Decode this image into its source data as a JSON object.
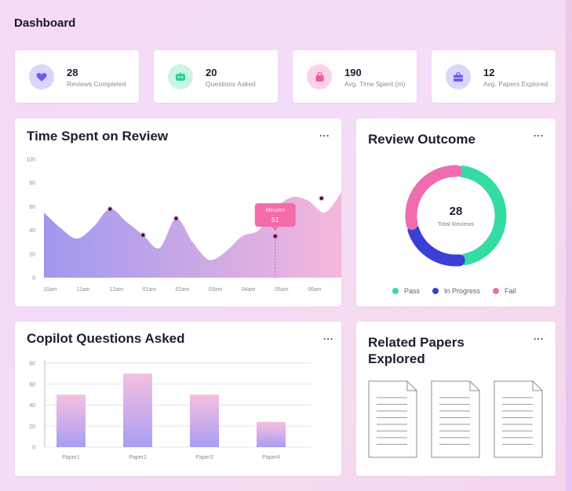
{
  "header": {
    "title": "Dashboard"
  },
  "stats": [
    {
      "value": "28",
      "label": "Reviews Completed",
      "icon": "heart-icon",
      "color": "#d9d6fb",
      "icon_color": "#6a5cf0"
    },
    {
      "value": "20",
      "label": "Questions Asked",
      "icon": "chat-bot-icon",
      "color": "#c9f5e4",
      "icon_color": "#2fcf8f"
    },
    {
      "value": "190",
      "label": "Avg. Time Spent (m)",
      "icon": "bag-icon",
      "color": "#fbd3e7",
      "icon_color": "#f05aa2"
    },
    {
      "value": "12",
      "label": "Avg. Papers Explored",
      "icon": "briefcase-icon",
      "color": "#d9d6fb",
      "icon_color": "#6a5cf0"
    }
  ],
  "time_panel": {
    "title": "Time Spent on Review",
    "more": "···",
    "tooltip_title": "Minutes",
    "tooltip_value": "51"
  },
  "outcome_panel": {
    "title": "Review Outcome",
    "more": "···",
    "center_value": "28",
    "center_label": "Total Reviews",
    "legend": [
      {
        "label": "Pass",
        "color": "#34dca0"
      },
      {
        "label": "In Progress",
        "color": "#3b3fd8"
      },
      {
        "label": "Fail",
        "color": "#f06bb0"
      }
    ]
  },
  "questions_panel": {
    "title": "Copilot Questions Asked",
    "more": "···"
  },
  "papers_panel": {
    "title_line1": "Related Papers",
    "title_line2": "Explored",
    "more": "···",
    "documents": [
      "document-icon",
      "document-icon",
      "document-icon"
    ]
  },
  "chart_data": [
    {
      "type": "area",
      "categories": [
        "10am",
        "11am",
        "12am",
        "01am",
        "02am",
        "03am",
        "04am",
        "05am",
        "06am"
      ],
      "x": [
        0,
        0.5,
        1,
        1.5,
        2,
        2.5,
        3,
        3.5,
        4,
        4.5,
        5,
        5.5,
        6,
        6.5,
        7,
        7.5,
        8,
        8.5,
        9
      ],
      "values": [
        55,
        42,
        33,
        43,
        58,
        47,
        36,
        25,
        50,
        30,
        15,
        22,
        35,
        40,
        58,
        68,
        65,
        55,
        72
      ],
      "markers": [
        2,
        3,
        4,
        7,
        8.4
      ],
      "marker_values": [
        58,
        36,
        50,
        35,
        67
      ],
      "highlight_index": 3,
      "ylim": [
        0,
        100
      ],
      "yticks": [
        0,
        20,
        40,
        60,
        80,
        100
      ],
      "grid": false,
      "colors": [
        "#9f98ef",
        "#f5b8dc"
      ]
    },
    {
      "type": "pie",
      "donut": true,
      "labels": [
        "Pass",
        "In Progress",
        "Fail"
      ],
      "values": [
        13,
        6.5,
        8.5
      ],
      "colors": [
        "#34dca0",
        "#3b3fd8",
        "#f06bb0"
      ]
    },
    {
      "type": "bar",
      "categories": [
        "Paper1",
        "Paper2",
        "Paper3",
        "Paper4"
      ],
      "values": [
        50,
        70,
        50,
        24
      ],
      "ylim": [
        0,
        80
      ],
      "yticks": [
        0,
        20,
        40,
        60,
        80
      ],
      "grid": true,
      "colors": [
        "#f6bfe0",
        "#a99ef2"
      ]
    }
  ]
}
